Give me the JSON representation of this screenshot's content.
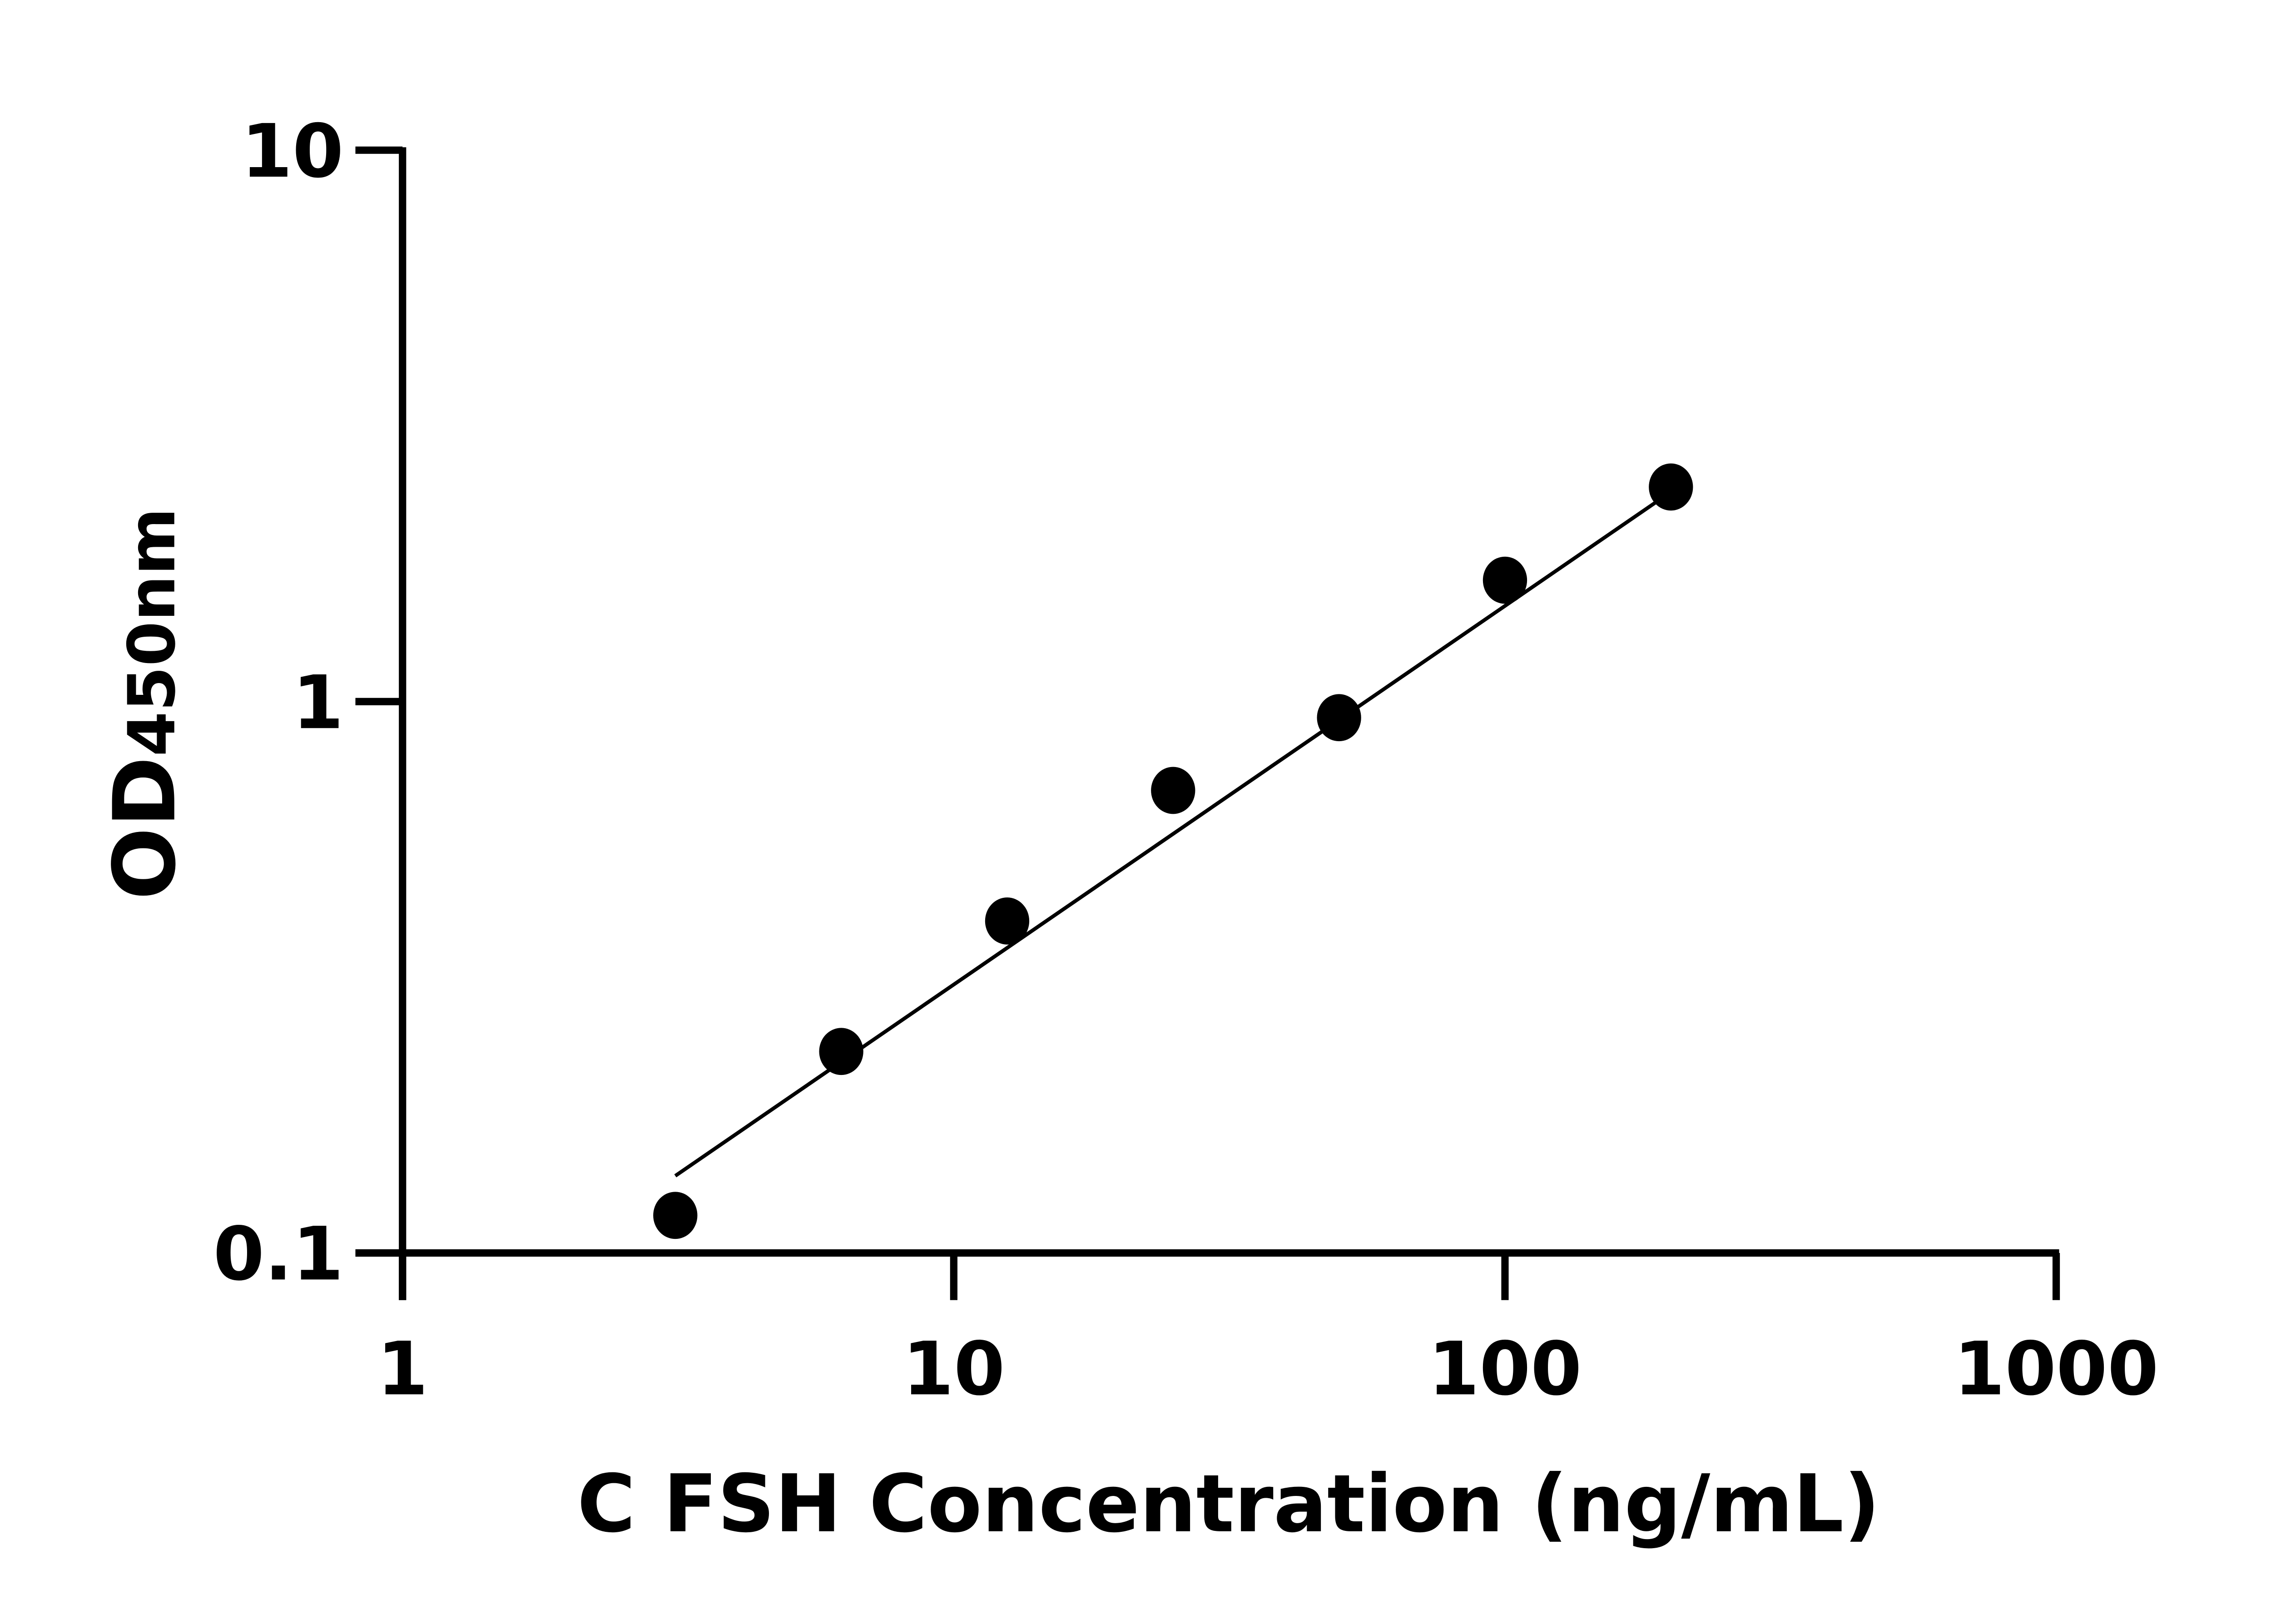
{
  "chart_data": {
    "type": "scatter",
    "title": "",
    "xlabel": "C FSH Concentration (ng/mL)",
    "ylabel_main": "OD",
    "ylabel_sub": "450nm",
    "x_scale": "log",
    "y_scale": "log",
    "xlim": [
      1,
      1000
    ],
    "ylim": [
      0.1,
      10
    ],
    "x_ticks": [
      1,
      10,
      100,
      1000
    ],
    "x_tick_labels": [
      "1",
      "10",
      "100",
      "1000"
    ],
    "y_ticks": [
      0.1,
      1,
      10
    ],
    "y_tick_labels": [
      "0.1",
      "1",
      "10"
    ],
    "grid": false,
    "legend": "none",
    "marker_color": "#000000",
    "points": {
      "x": [
        3.125,
        6.25,
        12.5,
        25,
        50,
        100,
        200
      ],
      "y": [
        0.117,
        0.232,
        0.4,
        0.69,
        0.935,
        1.66,
        2.45
      ]
    },
    "fit_line": {
      "x": [
        3.125,
        200
      ],
      "y": [
        0.138,
        2.4
      ]
    }
  }
}
